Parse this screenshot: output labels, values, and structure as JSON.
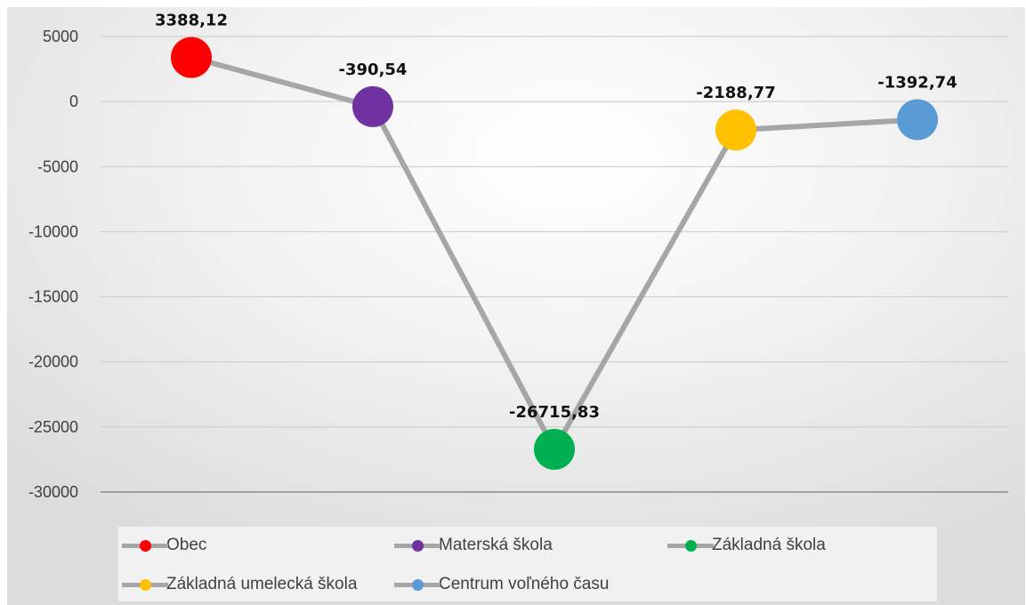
{
  "chart_data": {
    "type": "line",
    "title": "",
    "xlabel": "",
    "ylabel": "",
    "ylim": [
      -30000,
      5000
    ],
    "yticks": [
      "5000",
      "0",
      "-5000",
      "-10000",
      "-15000",
      "-20000",
      "-25000",
      "-30000"
    ],
    "ytick_values": [
      5000,
      0,
      -5000,
      -10000,
      -15000,
      -20000,
      -25000,
      -30000
    ],
    "grid": true,
    "line_color": "#a6a6a6",
    "legend_position": "bottom",
    "points": [
      {
        "category": "Obec",
        "value": 3388.12,
        "label": "3388,12",
        "color": "#ff0000"
      },
      {
        "category": "Materská škola",
        "value": -390.54,
        "label": "-390,54",
        "color": "#7030a0"
      },
      {
        "category": "Základná škola",
        "value": -26715.83,
        "label": "-26715,83",
        "color": "#00b050"
      },
      {
        "category": "Základná umelecká škola",
        "value": -2188.77,
        "label": "-2188,77",
        "color": "#ffc000"
      },
      {
        "category": "Centrum voľného času",
        "value": -1392.74,
        "label": "-1392,74",
        "color": "#5b9bd5"
      }
    ]
  }
}
